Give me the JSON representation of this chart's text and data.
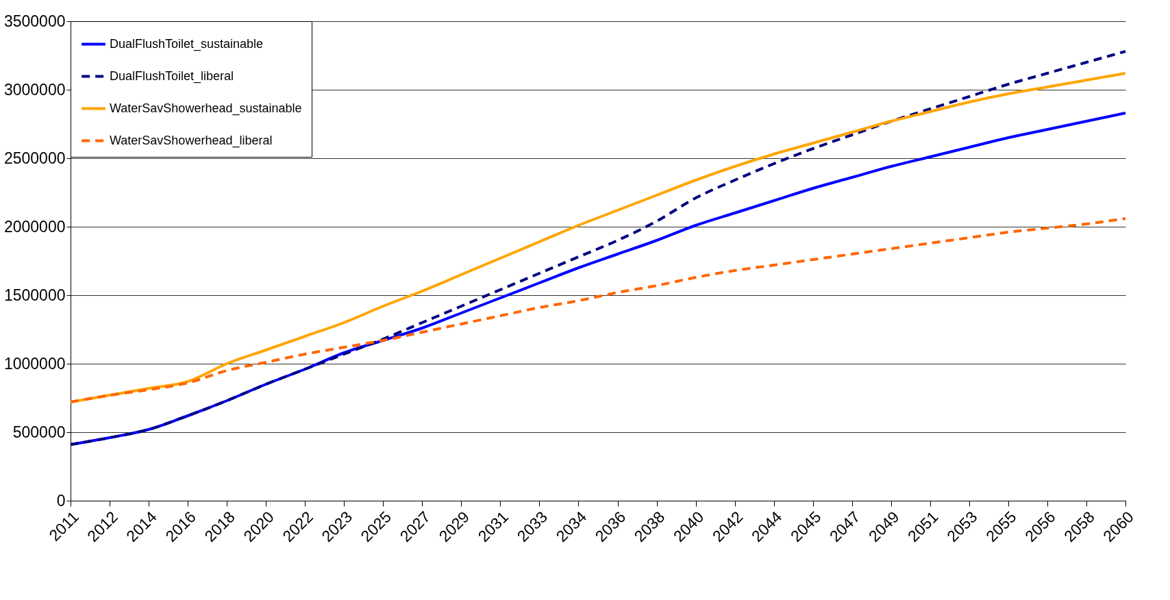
{
  "chart_data": {
    "type": "line",
    "categories": [
      "2011",
      "2012",
      "2014",
      "2016",
      "2018",
      "2020",
      "2022",
      "2023",
      "2025",
      "2027",
      "2029",
      "2031",
      "2033",
      "2034",
      "2036",
      "2038",
      "2040",
      "2042",
      "2044",
      "2045",
      "2047",
      "2049",
      "2051",
      "2053",
      "2055",
      "2056",
      "2058",
      "2060"
    ],
    "series": [
      {
        "name": "DualFlushToilet_sustainable",
        "color": "#0000ff",
        "line_style": "solid",
        "values": [
          410000,
          460000,
          520000,
          620000,
          730000,
          850000,
          960000,
          1080000,
          1170000,
          1260000,
          1370000,
          1480000,
          1590000,
          1700000,
          1800000,
          1900000,
          2010000,
          2100000,
          2190000,
          2280000,
          2360000,
          2440000,
          2510000,
          2580000,
          2650000,
          2710000,
          2770000,
          2830000
        ]
      },
      {
        "name": "DualFlushToilet_liberal",
        "color": "#000080",
        "line_style": "dashed",
        "values": [
          410000,
          460000,
          520000,
          620000,
          730000,
          850000,
          960000,
          1070000,
          1180000,
          1300000,
          1420000,
          1540000,
          1660000,
          1780000,
          1900000,
          2040000,
          2210000,
          2340000,
          2460000,
          2570000,
          2670000,
          2770000,
          2860000,
          2950000,
          3040000,
          3120000,
          3200000,
          3280000
        ]
      },
      {
        "name": "WaterSavShowerhead_sustainable",
        "color": "#ffa500",
        "line_style": "solid",
        "values": [
          720000,
          770000,
          820000,
          870000,
          1000000,
          1100000,
          1200000,
          1300000,
          1420000,
          1530000,
          1650000,
          1770000,
          1890000,
          2010000,
          2120000,
          2230000,
          2340000,
          2440000,
          2530000,
          2610000,
          2690000,
          2770000,
          2840000,
          2910000,
          2970000,
          3020000,
          3070000,
          3120000
        ]
      },
      {
        "name": "WaterSavShowerhead_liberal",
        "color": "#ff6600",
        "line_style": "dashed",
        "values": [
          720000,
          770000,
          810000,
          860000,
          950000,
          1010000,
          1070000,
          1120000,
          1170000,
          1230000,
          1290000,
          1350000,
          1410000,
          1460000,
          1520000,
          1570000,
          1630000,
          1680000,
          1720000,
          1760000,
          1800000,
          1840000,
          1880000,
          1920000,
          1960000,
          1990000,
          2020000,
          2060000
        ]
      }
    ],
    "ylim": [
      0,
      3500000
    ],
    "yticks": [
      0,
      500000,
      1000000,
      1500000,
      2000000,
      2500000,
      3000000,
      3500000
    ],
    "grid": "y",
    "legend": "top left",
    "marker": "none"
  }
}
